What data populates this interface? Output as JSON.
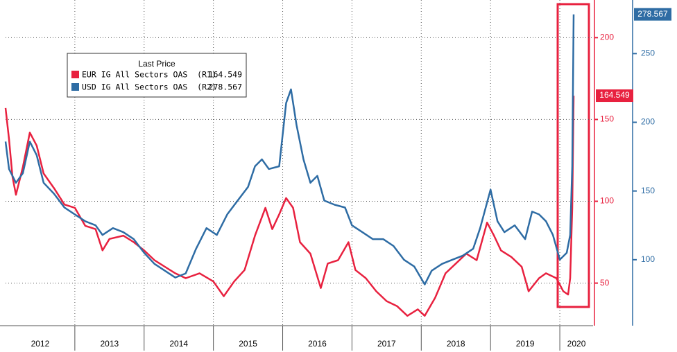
{
  "chart_data": {
    "type": "line",
    "legend_title": "Last Price",
    "xlim": [
      2012,
      2020.48
    ],
    "xticks": [
      2012,
      2013,
      2014,
      2015,
      2016,
      2017,
      2018,
      2019,
      2020
    ],
    "ylim": [
      24,
      223
    ],
    "yticks": [
      50,
      100,
      150,
      200
    ],
    "y2lim": [
      52,
      289
    ],
    "y2ticks": [
      100,
      150,
      200,
      250
    ],
    "grid": true,
    "series": [
      {
        "name": "EUR IG All Sectors OAS  (R1)",
        "color": "#e8213f",
        "axis": "y",
        "x": [
          2012.0,
          2012.05,
          2012.1,
          2012.15,
          2012.25,
          2012.35,
          2012.45,
          2012.55,
          2012.7,
          2012.85,
          2013.0,
          2013.15,
          2013.3,
          2013.4,
          2013.5,
          2013.7,
          2013.85,
          2014.0,
          2014.15,
          2014.3,
          2014.45,
          2014.6,
          2014.8,
          2015.0,
          2015.15,
          2015.3,
          2015.45,
          2015.6,
          2015.75,
          2015.85,
          2015.95,
          2016.05,
          2016.15,
          2016.25,
          2016.4,
          2016.55,
          2016.65,
          2016.8,
          2016.95,
          2017.05,
          2017.2,
          2017.35,
          2017.5,
          2017.65,
          2017.8,
          2017.95,
          2018.05,
          2018.2,
          2018.35,
          2018.5,
          2018.65,
          2018.8,
          2018.95,
          2019.05,
          2019.15,
          2019.3,
          2019.45,
          2019.55,
          2019.7,
          2019.8,
          2019.95,
          2020.05,
          2020.12,
          2020.15,
          2020.18,
          2020.2
        ],
        "values": [
          157,
          138,
          115,
          104,
          121,
          142,
          134,
          117,
          108,
          98,
          96,
          85,
          83,
          70,
          77,
          79,
          75,
          70,
          64,
          60,
          56,
          53,
          56,
          51,
          42,
          51,
          58,
          79,
          96,
          83,
          92,
          102,
          96,
          75,
          68,
          47,
          62,
          64,
          75,
          58,
          53,
          45,
          39,
          36,
          30,
          34,
          30,
          41,
          56,
          62,
          68,
          64,
          87,
          79,
          70,
          66,
          60,
          45,
          53,
          56,
          53,
          45,
          43,
          53,
          96,
          164.549
        ]
      },
      {
        "name": "USD IG All Sectors OAS  (R2)",
        "color": "#2e6ca4",
        "axis": "y2",
        "x": [
          2012.0,
          2012.05,
          2012.15,
          2012.25,
          2012.35,
          2012.45,
          2012.55,
          2012.7,
          2012.85,
          2013.0,
          2013.15,
          2013.3,
          2013.4,
          2013.55,
          2013.7,
          2013.85,
          2014.0,
          2014.15,
          2014.3,
          2014.45,
          2014.6,
          2014.75,
          2014.9,
          2015.05,
          2015.2,
          2015.35,
          2015.5,
          2015.6,
          2015.7,
          2015.8,
          2015.95,
          2016.05,
          2016.12,
          2016.2,
          2016.3,
          2016.4,
          2016.5,
          2016.6,
          2016.75,
          2016.9,
          2017.0,
          2017.15,
          2017.3,
          2017.45,
          2017.6,
          2017.75,
          2017.9,
          2018.05,
          2018.15,
          2018.3,
          2018.45,
          2018.6,
          2018.75,
          2018.85,
          2019.0,
          2019.1,
          2019.2,
          2019.35,
          2019.5,
          2019.6,
          2019.7,
          2019.8,
          2019.9,
          2020.0,
          2020.1,
          2020.15,
          2020.18,
          2020.2
        ],
        "values": [
          186,
          166,
          156,
          163,
          186,
          176,
          156,
          148,
          138,
          133,
          128,
          125,
          118,
          123,
          120,
          115,
          105,
          97,
          92,
          87,
          90,
          108,
          123,
          118,
          133,
          143,
          153,
          168,
          173,
          166,
          168,
          214,
          224,
          198,
          173,
          156,
          161,
          143,
          140,
          138,
          125,
          120,
          115,
          115,
          110,
          100,
          95,
          82,
          92,
          97,
          100,
          103,
          108,
          123,
          151,
          128,
          120,
          125,
          115,
          135,
          133,
          128,
          118,
          100,
          105,
          118,
          168,
          278.567
        ]
      }
    ]
  }
}
